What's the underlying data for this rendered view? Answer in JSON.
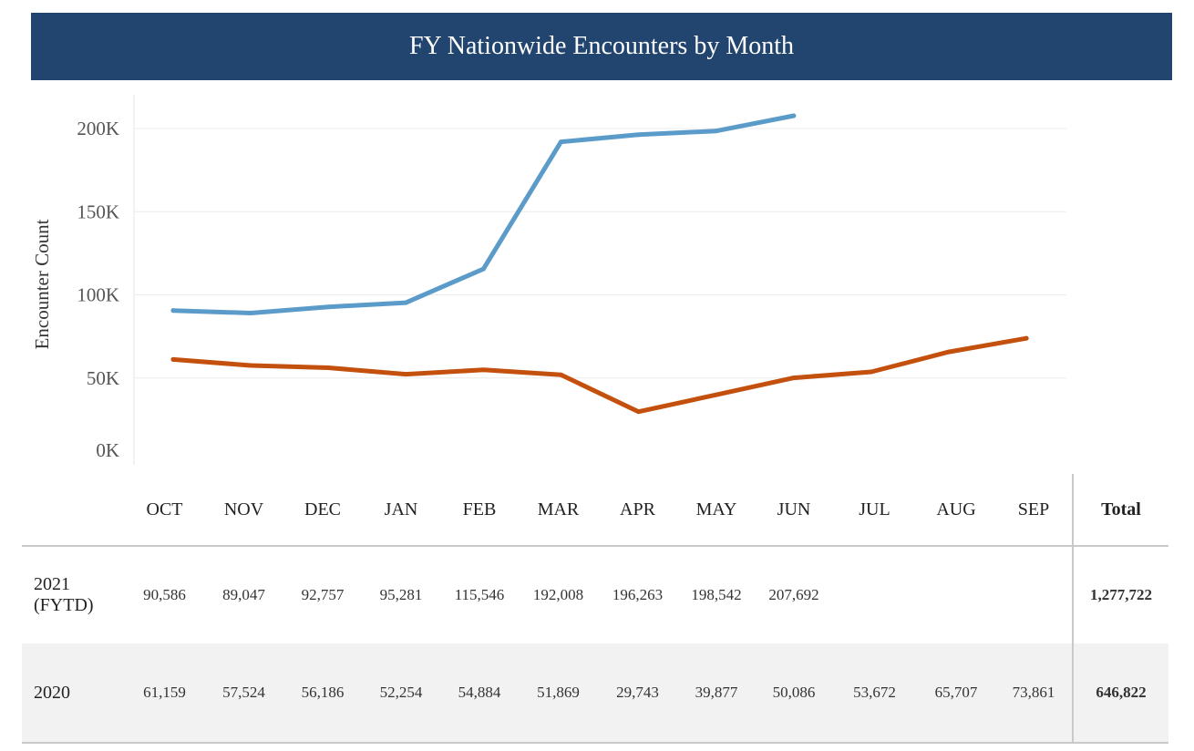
{
  "header": {
    "title": "FY Nationwide Encounters by Month"
  },
  "chart_data": {
    "type": "line",
    "title": "FY Nationwide Encounters by Month",
    "ylabel": "Encounter Count",
    "xlabel": "",
    "ylim": [
      0,
      220000
    ],
    "yticks": [
      "0K",
      "50K",
      "100K",
      "150K",
      "200K"
    ],
    "ytick_values": [
      0,
      50000,
      100000,
      150000,
      200000
    ],
    "categories": [
      "OCT",
      "NOV",
      "DEC",
      "JAN",
      "FEB",
      "MAR",
      "APR",
      "MAY",
      "JUN",
      "JUL",
      "AUG",
      "SEP"
    ],
    "grid": true,
    "series": [
      {
        "name": "2021 (FYTD)",
        "color": "#5b9bc9",
        "values": [
          90586,
          89047,
          92757,
          95281,
          115546,
          192008,
          196263,
          198542,
          207692,
          null,
          null,
          null
        ]
      },
      {
        "name": "2020",
        "color": "#c4500e",
        "values": [
          61159,
          57524,
          56186,
          52254,
          54884,
          51869,
          29743,
          39877,
          50086,
          53672,
          65707,
          73861
        ]
      }
    ]
  },
  "table": {
    "total_label": "Total",
    "rows": [
      {
        "label_line1": "2021",
        "label_line2": "(FYTD)",
        "cells": [
          "90,586",
          "89,047",
          "92,757",
          "95,281",
          "115,546",
          "192,008",
          "196,263",
          "198,542",
          "207,692",
          "",
          "",
          ""
        ],
        "total": "1,277,722"
      },
      {
        "label_line1": "2020",
        "label_line2": "",
        "cells": [
          "61,159",
          "57,524",
          "56,186",
          "52,254",
          "54,884",
          "51,869",
          "29,743",
          "39,877",
          "50,086",
          "53,672",
          "65,707",
          "73,861"
        ],
        "total": "646,822"
      }
    ]
  }
}
